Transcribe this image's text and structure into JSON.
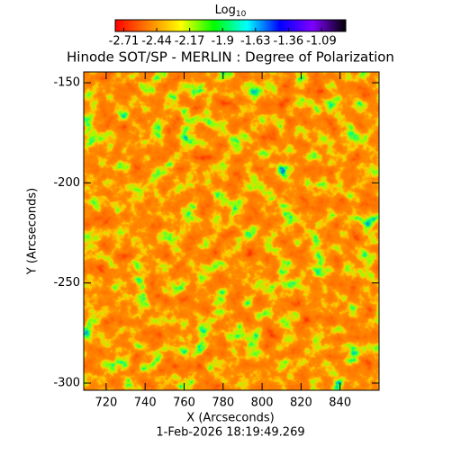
{
  "chart_data": {
    "type": "image",
    "title": "Hinode SOT/SP - MERLIN : Degree of Polarization",
    "xlabel": "X (Arcseconds)",
    "ylabel": "Y (Arcseconds)",
    "footer": "1-Feb-2026 18:19:49.269",
    "xlim": [
      708.5,
      860
    ],
    "xticks": [
      720,
      740,
      760,
      780,
      800,
      820,
      840
    ],
    "ylim": [
      -303.6,
      -144.6
    ],
    "yticks": [
      -150,
      -200,
      -250,
      -300
    ],
    "colorbar": {
      "label": "Log",
      "label_subscript": "10",
      "lim": [
        -2.78,
        -0.89
      ],
      "ticks": [
        -2.71,
        -2.44,
        -2.17,
        -1.9,
        -1.63,
        -1.36,
        -1.09
      ],
      "colors": [
        "#ff0000",
        "#ff7f00",
        "#ffff00",
        "#00ff00",
        "#00ffff",
        "#0000ff",
        "#7f00ff",
        "#000000"
      ]
    }
  }
}
